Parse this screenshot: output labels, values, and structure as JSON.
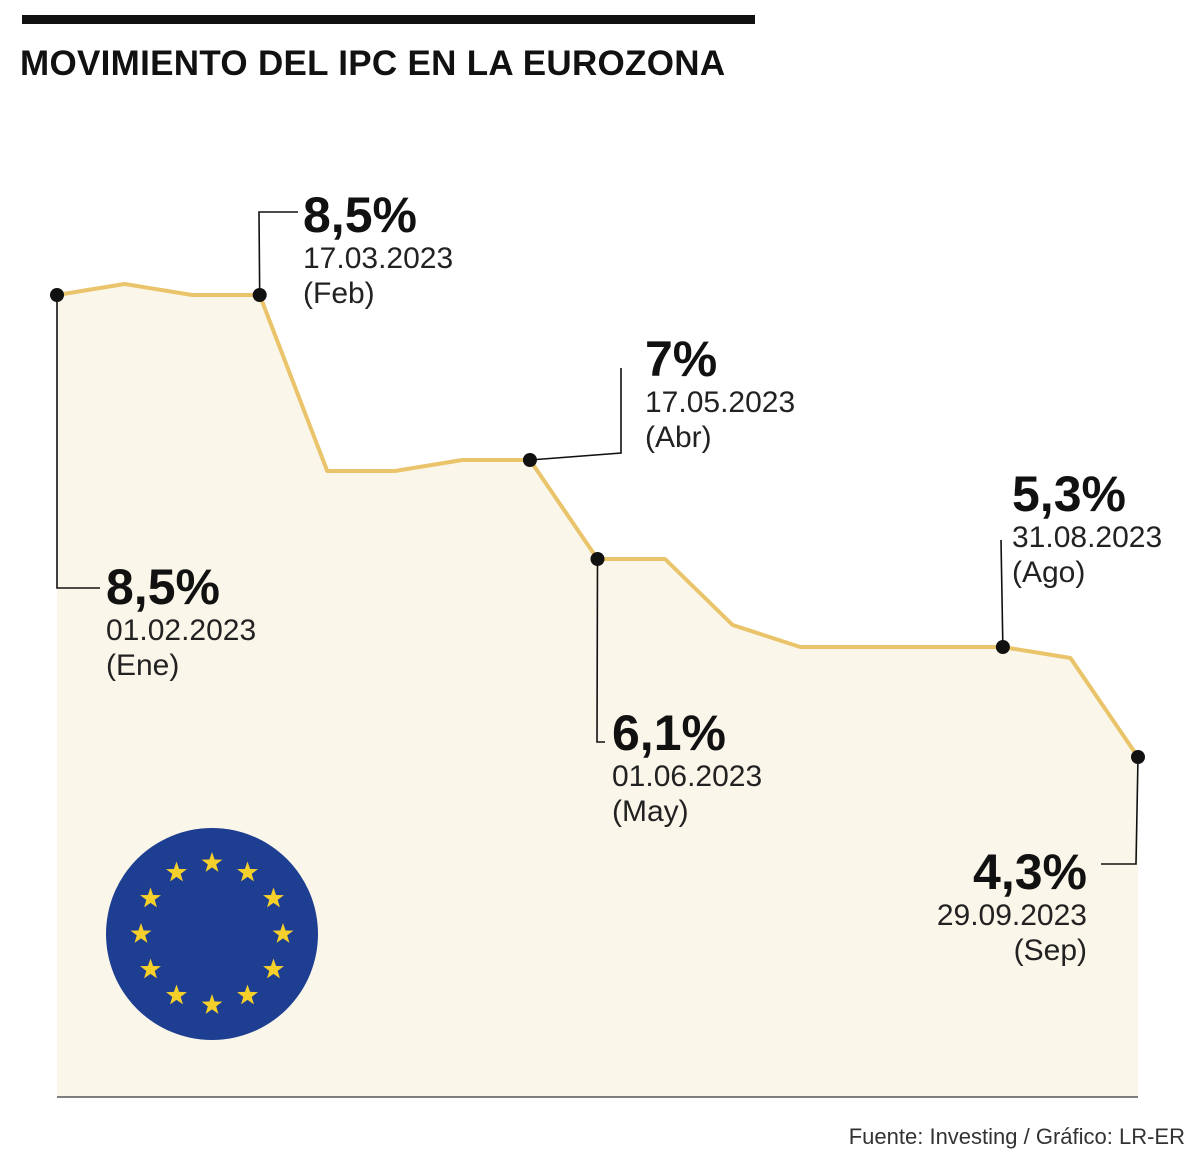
{
  "title": "MOVIMIENTO DEL IPC EN LA EUROZONA",
  "source": "Fuente: Investing / Gráfico: LR-ER",
  "colors": {
    "line": "#e9c46a",
    "area": "#fbf6ea",
    "flag": "#1e3f91",
    "stars": "#f5cf2a",
    "text": "#111111"
  },
  "icons": {
    "flag": "eu-flag-icon"
  },
  "chart_data": {
    "type": "area",
    "title": "MOVIMIENTO DEL IPC EN LA EUROZONA",
    "xlabel": "",
    "ylabel": "",
    "unit": "%",
    "x": [
      "01.02.2023",
      "",
      "",
      "17.03.2023",
      "",
      "",
      "",
      "17.05.2023",
      "01.06.2023",
      "",
      "",
      "",
      "",
      "",
      "31.08.2023",
      "",
      "29.09.2023"
    ],
    "values": [
      8.5,
      8.6,
      8.5,
      8.5,
      6.9,
      6.9,
      7.0,
      7.0,
      6.1,
      6.1,
      5.5,
      5.3,
      5.3,
      5.3,
      5.3,
      5.2,
      4.3
    ],
    "ylim": [
      0,
      11
    ],
    "labeled_points": [
      {
        "index": 0,
        "value": "8,5%",
        "date": "01.02.2023",
        "month": "(Ene)"
      },
      {
        "index": 3,
        "value": "8,5%",
        "date": "17.03.2023",
        "month": "(Feb)"
      },
      {
        "index": 7,
        "value": "7%",
        "date": "17.05.2023",
        "month": "(Abr)"
      },
      {
        "index": 8,
        "value": "6,1%",
        "date": "01.06.2023",
        "month": "(May)"
      },
      {
        "index": 14,
        "value": "5,3%",
        "date": "31.08.2023",
        "month": "(Ago)"
      },
      {
        "index": 16,
        "value": "4,3%",
        "date": "29.09.2023",
        "month": "(Sep)"
      }
    ]
  }
}
